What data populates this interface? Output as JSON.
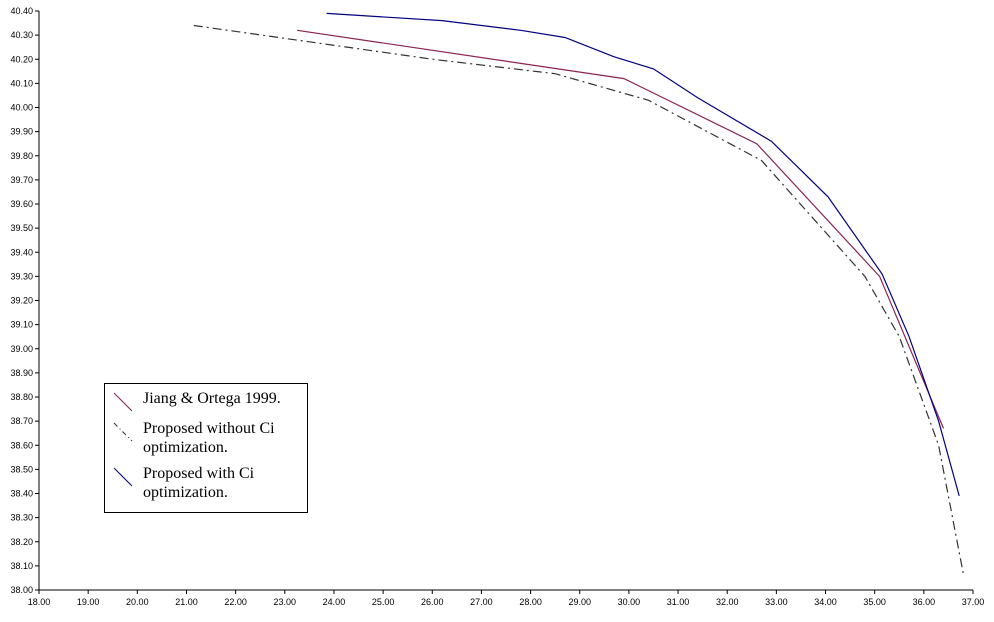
{
  "chart_data": {
    "type": "line",
    "title": "",
    "xlabel": "",
    "ylabel": "",
    "xlim": [
      18,
      37
    ],
    "ylim": [
      38.0,
      40.4
    ],
    "grid": false,
    "legend_position": "left",
    "x_tick_labels": [
      "18.00",
      "19.00",
      "20.00",
      "21.00",
      "22.00",
      "23.00",
      "24.00",
      "25.00",
      "26.00",
      "27.00",
      "28.00",
      "29.00",
      "30.00",
      "31.00",
      "32.00",
      "33.00",
      "34.00",
      "35.00",
      "36.00",
      "37.00"
    ],
    "y_tick_labels": [
      "38.00",
      "38.10",
      "38.20",
      "38.30",
      "38.40",
      "38.50",
      "38.60",
      "38.70",
      "38.80",
      "38.90",
      "39.00",
      "39.10",
      "39.20",
      "39.30",
      "39.40",
      "39.50",
      "39.60",
      "39.70",
      "39.80",
      "39.90",
      "40.00",
      "40.10",
      "40.20",
      "40.30",
      "40.40"
    ],
    "series": [
      {
        "name": "Jiang & Ortega 1999.",
        "color": "#8b2252",
        "style": "solid",
        "x": [
          23.25,
          29.9,
          32.6,
          35.1,
          36.4
        ],
        "y": [
          40.32,
          40.12,
          39.85,
          39.3,
          38.67
        ]
      },
      {
        "name": "Proposed without Ci optimization.",
        "color": "#333333",
        "style": "dashdot",
        "x": [
          21.15,
          26.0,
          28.5,
          30.4,
          32.7,
          34.8,
          35.5,
          36.3,
          36.8
        ],
        "y": [
          40.34,
          40.2,
          40.14,
          40.03,
          39.78,
          39.3,
          39.05,
          38.6,
          38.07
        ]
      },
      {
        "name": "Proposed with Ci optimization.",
        "color": "#000080",
        "style": "solid",
        "x": [
          23.85,
          26.2,
          27.8,
          28.7,
          29.7,
          30.5,
          31.4,
          32.9,
          34.05,
          35.15,
          35.7,
          36.3,
          36.72
        ],
        "y": [
          40.39,
          40.36,
          40.32,
          40.29,
          40.21,
          40.16,
          40.04,
          39.86,
          39.63,
          39.31,
          39.05,
          38.7,
          38.39
        ]
      }
    ]
  }
}
